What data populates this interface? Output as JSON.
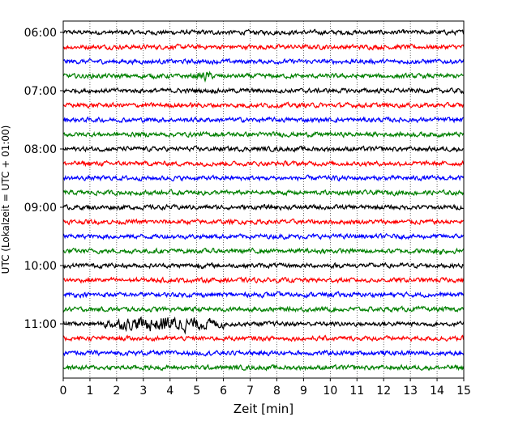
{
  "chart_data": {
    "type": "line",
    "title": "",
    "xlabel": "Zeit  [min]",
    "ylabel": "UTC (Lokalzeit = UTC + 01:00)",
    "xlim": [
      0,
      15
    ],
    "xticks": [
      "0",
      "1",
      "2",
      "3",
      "4",
      "5",
      "6",
      "7",
      "8",
      "9",
      "10",
      "11",
      "12",
      "13",
      "14",
      "15"
    ],
    "ytick_labels": [
      "06:00",
      "07:00",
      "08:00",
      "09:00",
      "10:00",
      "11:00"
    ],
    "grid_x": true,
    "grid_y": false,
    "trace_interval_minutes": 15,
    "trace_start": "06:00",
    "trace_count": 24,
    "trace_colors": [
      "#000000",
      "#ff0000",
      "#0000ff",
      "#008000"
    ],
    "noise_amplitude_relative": 0.12,
    "events": [
      {
        "trace": 3,
        "minute_from": 5.0,
        "minute_to": 5.6,
        "amplitude_relative": 0.3
      },
      {
        "trace": 20,
        "minute_from": 1.5,
        "minute_to": 6.0,
        "amplitude_relative": 0.45
      },
      {
        "trace": 16,
        "minute_from": 4.9,
        "minute_to": 5.2,
        "amplitude_relative": 0.3
      },
      {
        "trace": 15,
        "minute_from": 13.8,
        "minute_to": 14.3,
        "amplitude_relative": 0.25
      }
    ]
  }
}
